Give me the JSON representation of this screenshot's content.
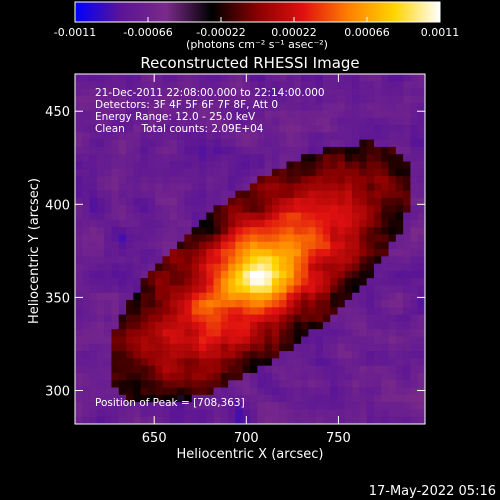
{
  "chart_data": {
    "type": "heatmap",
    "title": "Reconstructed RHESSI Image",
    "xlabel": "Heliocentric X (arcsec)",
    "ylabel": "Heliocentric Y (arcsec)",
    "xlim": [
      607,
      797
    ],
    "ylim": [
      282,
      470
    ],
    "x_ticks": [
      650,
      700,
      750
    ],
    "y_ticks": [
      300,
      350,
      400,
      450
    ],
    "colorbar": {
      "ticks": [
        "-0.0011",
        "-0.00066",
        "-0.00022",
        "0.00022",
        "0.00066",
        "0.0011"
      ],
      "range": [
        -0.0011,
        0.0011
      ],
      "label": "(photons cm⁻² s⁻¹ asec⁻²)",
      "colormap": [
        "#0000ff",
        "#5a1496",
        "#7a2a8a",
        "#000000",
        "#8a0000",
        "#e01010",
        "#ff8000",
        "#ffd400",
        "#ffffff"
      ]
    },
    "annotations": [
      "21-Dec-2011 22:08:00.000 to 22:14:00.000",
      "Detectors: 3F 4F 5F 6F 7F 8F, Att 0",
      "Energy Range: 12.0 - 25.0 keV",
      "Clean     Total counts: 2.09E+04"
    ],
    "peak_label": "Position of Peak = [708,363]",
    "peak": [
      708,
      363
    ],
    "grid": false
  },
  "footer": {
    "timestamp": "17-May-2022 05:16"
  }
}
